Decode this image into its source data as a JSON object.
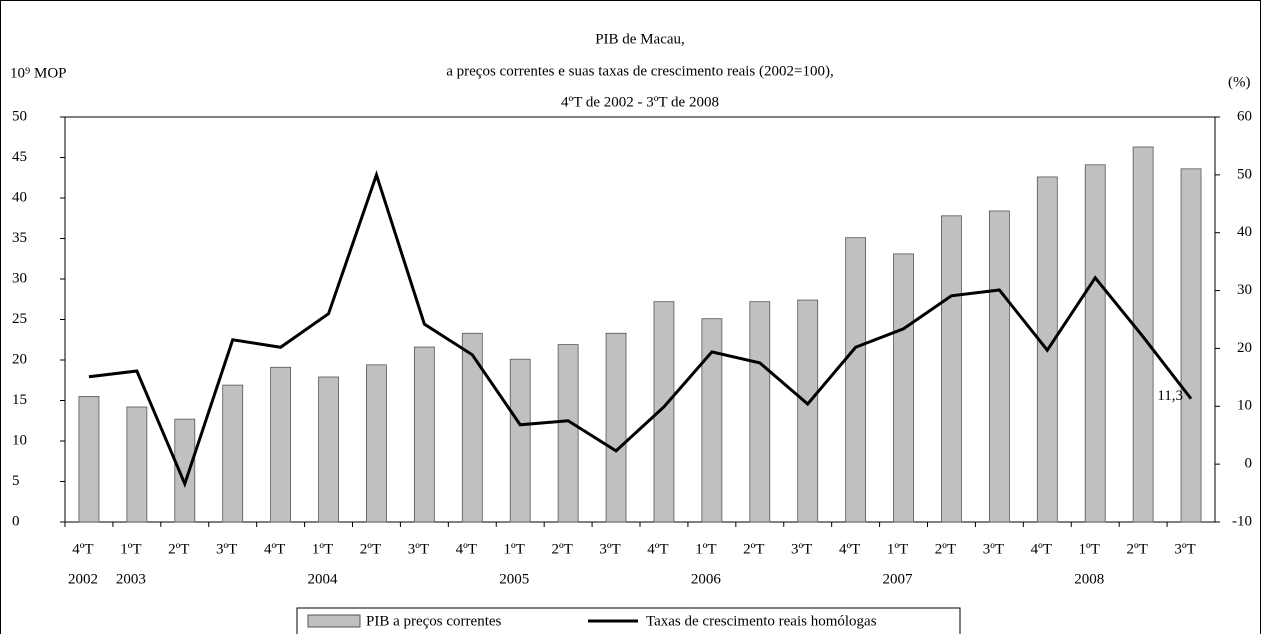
{
  "chart_data": {
    "type": "bar_line",
    "title": [
      "PIB de Macau,",
      "a preços correntes e suas taxas de crescimento reais (2002=100),",
      "4ºT de 2002 - 3ºT de 2008"
    ],
    "y_label": "10⁹ MOP",
    "y2_label": "(%)",
    "categories": [
      "4ºT",
      "1ºT",
      "2ºT",
      "3ºT",
      "4ºT",
      "1ºT",
      "2ºT",
      "3ºT",
      "4ºT",
      "1ºT",
      "2ºT",
      "3ºT",
      "4ºT",
      "1ºT",
      "2ºT",
      "3ºT",
      "4ºT",
      "1ºT",
      "2ºT",
      "3ºT",
      "4ºT",
      "1ºT",
      "2ºT",
      "3ºT"
    ],
    "years": [
      "2002",
      "2003",
      null,
      null,
      null,
      "2004",
      null,
      null,
      null,
      "2005",
      null,
      null,
      null,
      "2006",
      null,
      null,
      null,
      "2007",
      null,
      null,
      null,
      "2008",
      null,
      null
    ],
    "series": [
      {
        "name": "PIB a preços correntes",
        "type": "bar",
        "color": "#c0c0c0",
        "values": [
          15.5,
          14.2,
          12.7,
          16.9,
          19.1,
          17.9,
          19.4,
          21.6,
          23.3,
          20.1,
          21.9,
          23.3,
          27.2,
          25.1,
          27.2,
          27.4,
          35.1,
          33.1,
          37.8,
          38.4,
          42.6,
          44.1,
          46.3,
          43.6
        ]
      },
      {
        "name": "Taxas de crescimento reais homólogas",
        "type": "line",
        "axis": "y2",
        "color": "#000000",
        "values": [
          15.1,
          16.1,
          -3.4,
          21.5,
          20.2,
          26.0,
          50.0,
          24.2,
          18.9,
          6.8,
          7.5,
          2.3,
          9.9,
          19.4,
          17.5,
          10.4,
          20.2,
          23.4,
          29.1,
          30.1,
          19.7,
          32.2,
          22.0,
          11.3
        ],
        "value_labels": [
          null,
          null,
          null,
          null,
          null,
          null,
          null,
          null,
          null,
          null,
          null,
          null,
          null,
          null,
          null,
          null,
          null,
          null,
          null,
          null,
          null,
          null,
          null,
          "11,3"
        ]
      }
    ],
    "ylim": [
      0,
      50
    ],
    "yticks": [
      0,
      5,
      10,
      15,
      20,
      25,
      30,
      35,
      40,
      45,
      50
    ],
    "y2lim": [
      -10,
      60
    ],
    "y2ticks": [
      -10,
      0,
      10,
      20,
      30,
      40,
      50,
      60
    ]
  }
}
